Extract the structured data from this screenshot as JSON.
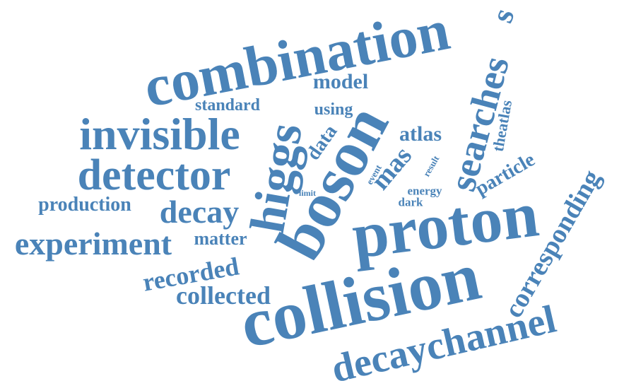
{
  "word_cloud": {
    "color": "#4a83b8",
    "words": {
      "combination": "combination",
      "proton": "proton",
      "collision": "collision",
      "boson": "boson",
      "higgs": "higgs",
      "invisible": "invisible",
      "detector": "detector",
      "decaychannel": "decaychannel",
      "searches": "searches",
      "corresponding": "corresponding",
      "experiment": "experiment",
      "decay": "decay",
      "production": "production",
      "recorded": "recorded",
      "collected": "collected",
      "matter": "matter",
      "model": "model",
      "standard": "standard",
      "using": "using",
      "data": "data",
      "atlas": "atlas",
      "theatlas": "theatlas",
      "mas": "mas",
      "particle": "particle",
      "event": "event",
      "result": "result",
      "energy": "energy",
      "dark": "dark",
      "limit": "limit",
      "s_top": "s"
    }
  }
}
